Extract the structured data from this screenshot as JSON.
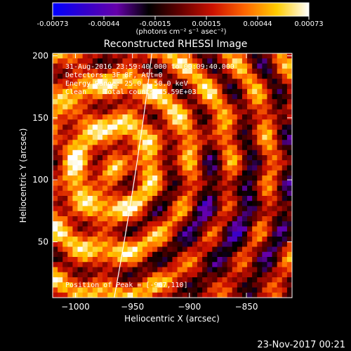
{
  "colorbar": {
    "tick_labels": [
      "-0.00073",
      "-0.00044",
      "-0.00015",
      "0.00015",
      "0.00044",
      "0.00073"
    ],
    "unit_label": "(photons cm⁻² s⁻¹ asec⁻²)",
    "colors": [
      "#0000ff",
      "#3300cc",
      "#6600aa",
      "#000000",
      "#660000",
      "#cc1100",
      "#ff6600",
      "#ffcc00",
      "#ffffff"
    ]
  },
  "info": {
    "line1": "31-Aug-2016 23:59:40.000 to 00:09:40.000",
    "line2": "Detectors: 3F 8F, Att=0",
    "line3": "Energy Range: 25.0 - 50.0 keV",
    "line4": "Clean    Total counts: 5.59E+03",
    "peak": "Position of Peak = [-967,110]"
  },
  "footer": {
    "timestamp": "23-Nov-2017 00:21"
  },
  "chart_data": {
    "type": "heatmap",
    "title": "Reconstructed RHESSI Image",
    "xlabel": "Heliocentric X (arcsec)",
    "ylabel": "Heliocentric Y (arcsec)",
    "xlim": [
      -1020,
      -810
    ],
    "ylim": [
      5,
      202
    ],
    "xticks": [
      -1000,
      -950,
      -900,
      -850
    ],
    "yticks": [
      50,
      100,
      150,
      200
    ],
    "xtick_labels": [
      "−1000",
      "−950",
      "−900",
      "−850"
    ],
    "ytick_labels": [
      "50",
      "100",
      "150",
      "200"
    ],
    "value_range": [
      -0.00073,
      0.00073
    ],
    "peak": [
      -967,
      110
    ],
    "limb_points": [
      [
        -966,
        5
      ],
      [
        -945,
        110
      ],
      [
        -933,
        202
      ]
    ]
  }
}
